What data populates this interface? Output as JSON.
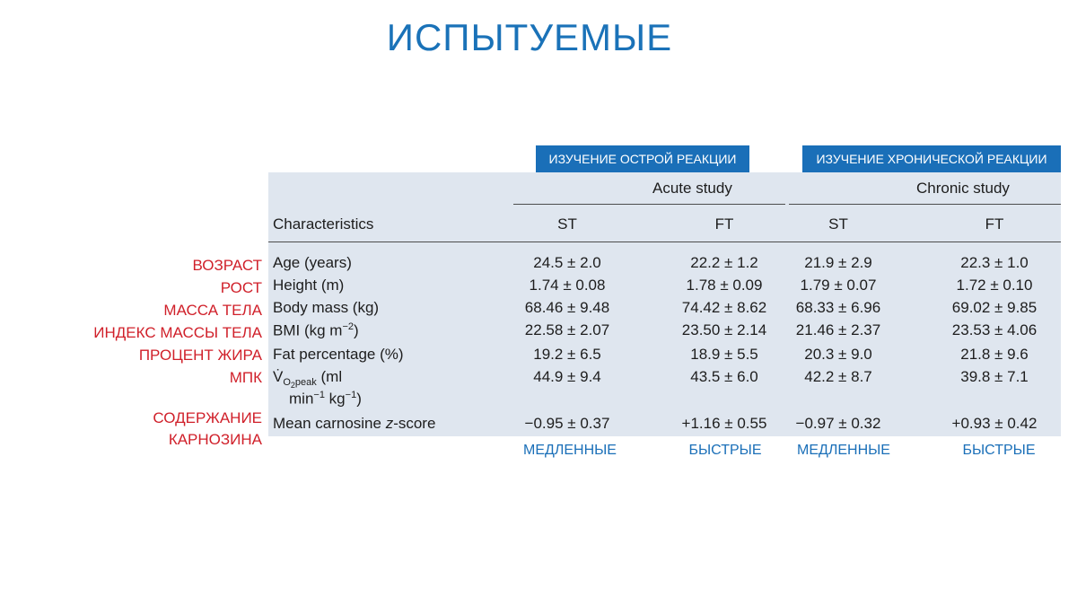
{
  "slide": {
    "title": "ИСПЫТУЕМЫЕ"
  },
  "tags": {
    "acute": "ИЗУЧЕНИЕ ОСТРОЙ РЕАКЦИИ",
    "chronic": "ИЗУЧЕНИЕ ХРОНИЧЕСКОЙ РЕАКЦИИ"
  },
  "table": {
    "group_headers": {
      "acute": "Acute study",
      "chronic": "Chronic study"
    },
    "characteristics_header": "Characteristics",
    "columns": [
      "ST",
      "FT",
      "ST",
      "FT"
    ],
    "rows": [
      {
        "label": "Age (years)",
        "values": [
          "24.5 ± 2.0",
          "22.2 ± 1.2",
          "21.9 ± 2.9",
          "22.3 ± 1.0"
        ]
      },
      {
        "label": "Height (m)",
        "values": [
          "1.74 ± 0.08",
          "1.78 ± 0.09",
          "1.79 ± 0.07",
          "1.72 ± 0.10"
        ]
      },
      {
        "label": "Body mass (kg)",
        "values": [
          "68.46 ± 9.48",
          "74.42 ± 8.62",
          "68.33 ± 6.96",
          "69.02 ± 9.85"
        ]
      },
      {
        "label_main": "BMI (kg m",
        "label_sup": "−2",
        "label_end": ")",
        "values": [
          "22.58 ± 2.07",
          "23.50 ± 2.14",
          "21.46 ± 2.37",
          "23.53 ± 4.06"
        ]
      },
      {
        "label": "Fat percentage (%)",
        "values": [
          "19.2 ± 6.5",
          "18.9 ± 5.5",
          "20.3 ± 9.0",
          "21.8 ± 9.6"
        ]
      },
      {
        "label_v": "V̇",
        "label_sub_o": "O",
        "label_sub_2": "2",
        "label_sub_peak": "peak",
        "label_rest": " (ml",
        "label_line2_a": "min",
        "label_line2_sup1": "−1",
        "label_line2_b": " kg",
        "label_line2_sup2": "−1",
        "label_line2_c": ")",
        "values": [
          "44.9 ± 9.4",
          "43.5 ± 6.0",
          "42.2 ± 8.7",
          "39.8 ± 7.1"
        ]
      },
      {
        "label_a": "Mean carnosine ",
        "label_italic": "z",
        "label_b": "-score",
        "values": [
          "−0.95 ± 0.37",
          "+1.16 ± 0.55",
          "−0.97 ± 0.32",
          "+0.93 ± 0.42"
        ]
      }
    ]
  },
  "russian_labels": [
    "ВОЗРАСТ",
    "РОСТ",
    "МАССА ТЕЛА",
    "ИНДЕКС МАССЫ ТЕЛА",
    "ПРОЦЕНТ ЖИРА",
    "МПК",
    "СОДЕРЖАНИЕ",
    "КАРНОЗИНА"
  ],
  "bottom_labels": [
    "МЕДЛЕННЫЕ",
    "БЫСТРЫЕ",
    "МЕДЛЕННЫЕ",
    "БЫСТРЫЕ"
  ]
}
